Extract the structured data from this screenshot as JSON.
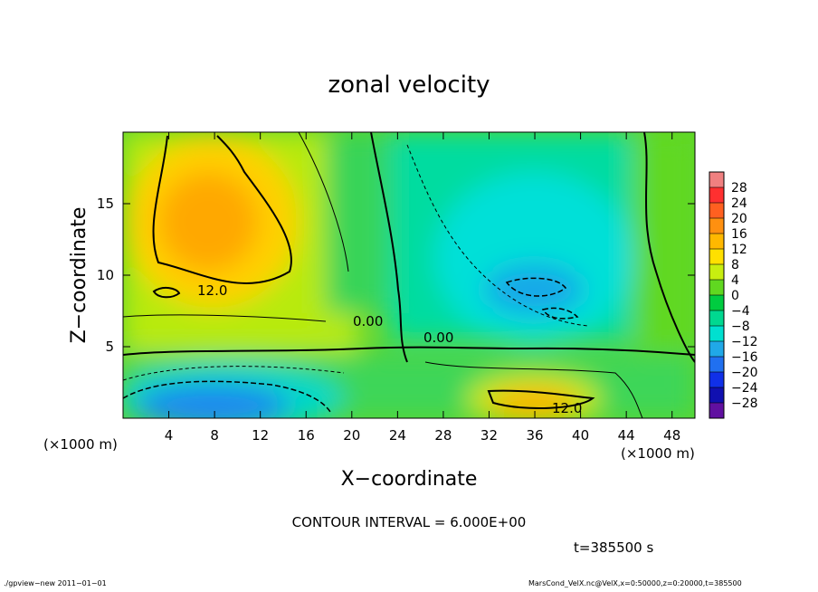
{
  "chart_data": {
    "type": "heatmap",
    "title": "zonal velocity",
    "xlabel": "X−coordinate",
    "ylabel": "Z−coordinate",
    "x_unit": "(×1000 m)",
    "y_unit": "(×1000 m)",
    "xlim": [
      0,
      50
    ],
    "ylim": [
      0,
      20
    ],
    "x_ticks": [
      4,
      8,
      12,
      16,
      20,
      24,
      28,
      32,
      36,
      40,
      44,
      48
    ],
    "y_ticks": [
      5,
      10,
      15
    ],
    "colorbar": {
      "min": -30,
      "max": 30,
      "ticks": [
        "28",
        "24",
        "20",
        "16",
        "12",
        "8",
        "4",
        "0",
        "−4",
        "−8",
        "−12",
        "−16",
        "−20",
        "−24",
        "−28"
      ],
      "colors": [
        "#f08080",
        "#ff3030",
        "#ff6020",
        "#ff9010",
        "#ffb800",
        "#ffe000",
        "#c8ee10",
        "#60d820",
        "#00cc40",
        "#00d890",
        "#00e0d0",
        "#20a8e8",
        "#2070f0",
        "#1030e8",
        "#1010b0",
        "#6010a0"
      ]
    },
    "contour_labels": [
      "12.0",
      "12.0",
      "0.00",
      "0.00"
    ],
    "contour_interval_label": "CONTOUR INTERVAL = 6.000E+00",
    "time_label": "t=385500 s",
    "features": [
      {
        "kind": "max",
        "x": 8,
        "z": 14,
        "value": 17
      },
      {
        "kind": "max",
        "x": 36,
        "z": 2,
        "value": 16
      },
      {
        "kind": "min",
        "x": 10,
        "z": 2,
        "value": -13
      },
      {
        "kind": "min",
        "x": 35,
        "z": 9,
        "value": -12
      },
      {
        "kind": "min",
        "x": 38,
        "z": 14,
        "value": -8
      }
    ]
  },
  "footer": {
    "left": "./gpview−new   2011−01−01",
    "right": "MarsCond_VelX.nc@VelX,x=0:50000,z=0:20000,t=385500"
  }
}
